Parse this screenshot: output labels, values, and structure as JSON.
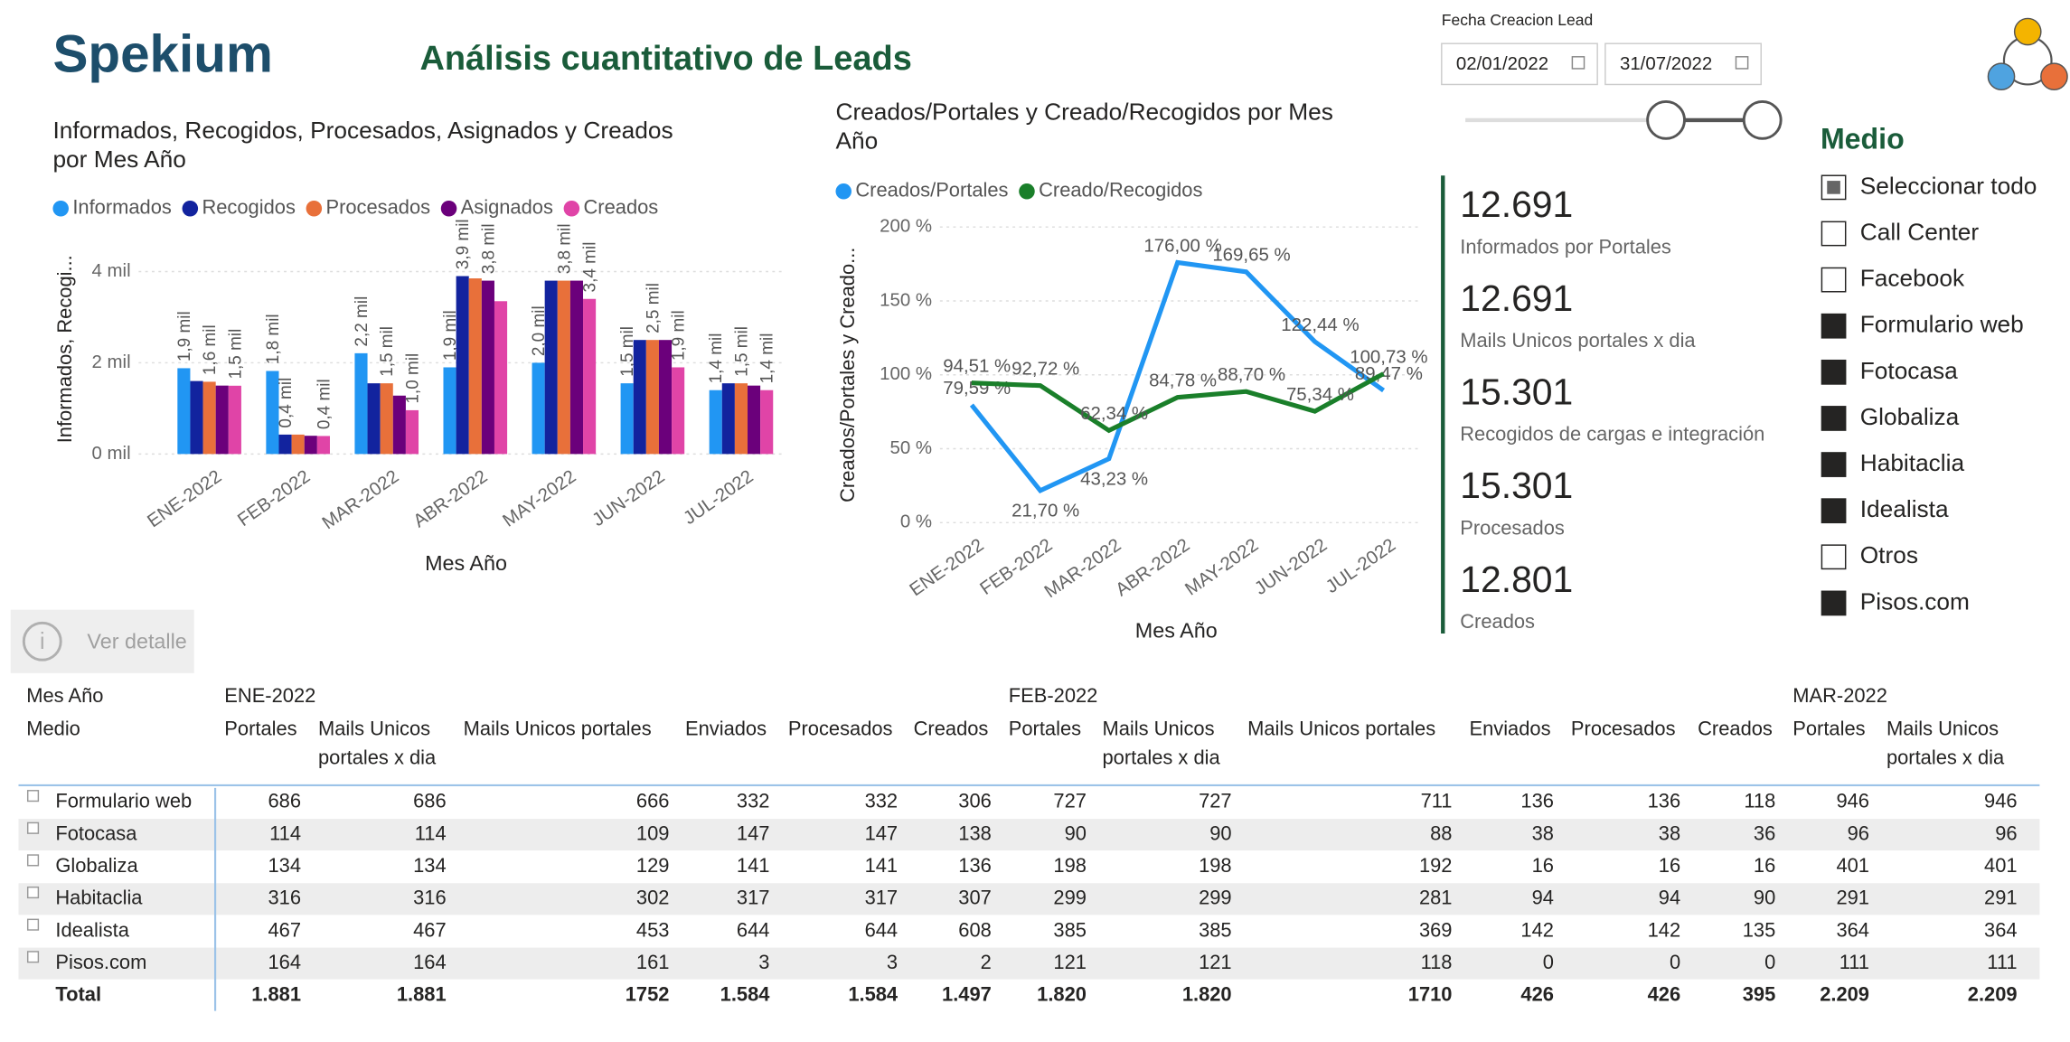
{
  "header": {
    "logo": "Spekium",
    "title": "Análisis cuantitativo de Leads"
  },
  "filter": {
    "label": "Fecha Creacion Lead",
    "from": "02/01/2022",
    "to": "31/07/2022"
  },
  "chart_data": [
    {
      "type": "bar",
      "title": [
        "Informados, Recogidos, Procesados, Asignados y Creados",
        "por Mes Año"
      ],
      "x_label": "Mes Año",
      "y_label": "Informados, Recogi...",
      "categories": [
        "ENE-2022",
        "FEB-2022",
        "MAR-2022",
        "ABR-2022",
        "MAY-2022",
        "JUN-2022",
        "JUL-2022"
      ],
      "ylim": [
        0,
        4600
      ],
      "yticks": [
        {
          "value": 0,
          "label": "0 mil"
        },
        {
          "value": 2000,
          "label": "2 mil"
        },
        {
          "value": 4000,
          "label": "4 mil"
        }
      ],
      "grid": true,
      "series": [
        {
          "name": "Informados",
          "color": "#2196f3",
          "values": [
            1881,
            1820,
            2209,
            1900,
            2000,
            1550,
            1400
          ],
          "value_labels": [
            "1,9 mil",
            "1,8 mil",
            "2,2 mil",
            "1,9 mil",
            "2,0 mil",
            "1,5 mil",
            "1,4 mil"
          ]
        },
        {
          "name": "Recogidos",
          "color": "#12239e",
          "values": [
            1600,
            426,
            1550,
            3900,
            3800,
            2500,
            1550
          ],
          "value_labels": [
            null,
            "0,4 mil",
            null,
            "3,9 mil",
            null,
            null,
            null
          ]
        },
        {
          "name": "Procesados",
          "color": "#e8703a",
          "values": [
            1584,
            426,
            1550,
            3850,
            3800,
            2500,
            1550
          ],
          "value_labels": [
            "1,6 mil",
            null,
            "1,5 mil",
            null,
            "3,8 mil",
            "2,5 mil",
            "1,5 mil"
          ]
        },
        {
          "name": "Asignados",
          "color": "#6b007b",
          "values": [
            1500,
            400,
            1280,
            3800,
            3800,
            2500,
            1500
          ],
          "value_labels": [
            null,
            null,
            null,
            "3,8 mil",
            null,
            null,
            null
          ]
        },
        {
          "name": "Creados",
          "color": "#e044a7",
          "values": [
            1497,
            395,
            960,
            3350,
            3400,
            1900,
            1400
          ],
          "value_labels": [
            "1,5 mil",
            "0,4 mil",
            "1,0 mil",
            null,
            "3,4 mil",
            "1,9 mil",
            "1,4 mil"
          ]
        }
      ]
    },
    {
      "type": "line",
      "title": [
        "Creados/Portales y Creado/Recogidos por Mes",
        "Año"
      ],
      "x_label": "Mes Año",
      "y_label": "Creados/Portales y Creado...",
      "categories": [
        "ENE-2022",
        "FEB-2022",
        "MAR-2022",
        "ABR-2022",
        "MAY-2022",
        "JUN-2022",
        "JUL-2022"
      ],
      "ylim": [
        0,
        200
      ],
      "yticks": [
        {
          "value": 0,
          "label": "0 %"
        },
        {
          "value": 50,
          "label": "50 %"
        },
        {
          "value": 100,
          "label": "100 %"
        },
        {
          "value": 150,
          "label": "150 %"
        },
        {
          "value": 200,
          "label": "200 %"
        }
      ],
      "grid": true,
      "series": [
        {
          "name": "Creados/Portales",
          "color": "#2196f3",
          "values": [
            79.59,
            21.7,
            43.23,
            176.0,
            169.65,
            122.44,
            89.47
          ],
          "value_labels": [
            "79,59 %",
            "21,70 %",
            "43,23 %",
            "176,00 %",
            "169,65 %",
            "122,44 %",
            "89,47 %"
          ]
        },
        {
          "name": "Creado/Recogidos",
          "color": "#1a7f2a",
          "values": [
            94.51,
            92.72,
            62.34,
            84.78,
            88.7,
            75.34,
            100.73
          ],
          "value_labels": [
            "94,51 %",
            "92,72 %",
            "62,34 %",
            "84,78 %",
            "88,70 %",
            "75,34 %",
            "100,73 %"
          ]
        }
      ]
    }
  ],
  "cards": [
    {
      "value": "12.691",
      "label": "Informados por Portales"
    },
    {
      "value": "12.691",
      "label": "Mails Unicos portales x dia"
    },
    {
      "value": "15.301",
      "label": "Recogidos de cargas e integración"
    },
    {
      "value": "15.301",
      "label": "Procesados"
    },
    {
      "value": "12.801",
      "label": "Creados"
    }
  ],
  "slicer": {
    "title": "Medio",
    "items": [
      {
        "label": "Seleccionar todo",
        "state": "partial"
      },
      {
        "label": "Call Center",
        "state": "unchecked"
      },
      {
        "label": "Facebook",
        "state": "unchecked"
      },
      {
        "label": "Formulario web",
        "state": "checked"
      },
      {
        "label": "Fotocasa",
        "state": "checked"
      },
      {
        "label": "Globaliza",
        "state": "checked"
      },
      {
        "label": "Habitaclia",
        "state": "checked"
      },
      {
        "label": "Idealista",
        "state": "checked"
      },
      {
        "label": "Otros",
        "state": "unchecked"
      },
      {
        "label": "Pisos.com",
        "state": "checked"
      }
    ]
  },
  "button": {
    "label": "Ver detalle"
  },
  "table": {
    "row_header": "Mes Año",
    "column_header": "Medio",
    "months": [
      "ENE-2022",
      "FEB-2022",
      "MAR-2022"
    ],
    "columns": [
      "Portales",
      [
        "Mails Unicos",
        "portales x dia"
      ],
      "Mails Unicos portales",
      "Enviados",
      "Procesados",
      "Creados",
      "Portales",
      [
        "Mails Unicos",
        "portales x dia"
      ],
      "Mails Unicos portales",
      "Enviados",
      "Procesados",
      "Creados",
      "Portales",
      [
        "Mails Unicos",
        "portales x dia"
      ]
    ],
    "rows": [
      {
        "label": "Formulario web",
        "cells": [
          686,
          686,
          666,
          332,
          332,
          306,
          727,
          727,
          711,
          136,
          136,
          118,
          946,
          946
        ]
      },
      {
        "label": "Fotocasa",
        "cells": [
          114,
          114,
          109,
          147,
          147,
          138,
          90,
          90,
          88,
          38,
          38,
          36,
          96,
          96
        ]
      },
      {
        "label": "Globaliza",
        "cells": [
          134,
          134,
          129,
          141,
          141,
          136,
          198,
          198,
          192,
          16,
          16,
          16,
          401,
          401
        ]
      },
      {
        "label": "Habitaclia",
        "cells": [
          316,
          316,
          302,
          317,
          317,
          307,
          299,
          299,
          281,
          94,
          94,
          90,
          291,
          291
        ]
      },
      {
        "label": "Idealista",
        "cells": [
          467,
          467,
          453,
          644,
          644,
          608,
          385,
          385,
          369,
          142,
          142,
          135,
          364,
          364
        ]
      },
      {
        "label": "Pisos.com",
        "cells": [
          164,
          164,
          161,
          3,
          3,
          2,
          121,
          121,
          118,
          0,
          0,
          0,
          111,
          111
        ]
      }
    ],
    "total": {
      "label": "Total",
      "cells": [
        "1.881",
        "1.881",
        1752,
        "1.584",
        "1.584",
        "1.497",
        "1.820",
        "1.820",
        1710,
        426,
        426,
        395,
        "2.209",
        "2.209"
      ]
    }
  }
}
